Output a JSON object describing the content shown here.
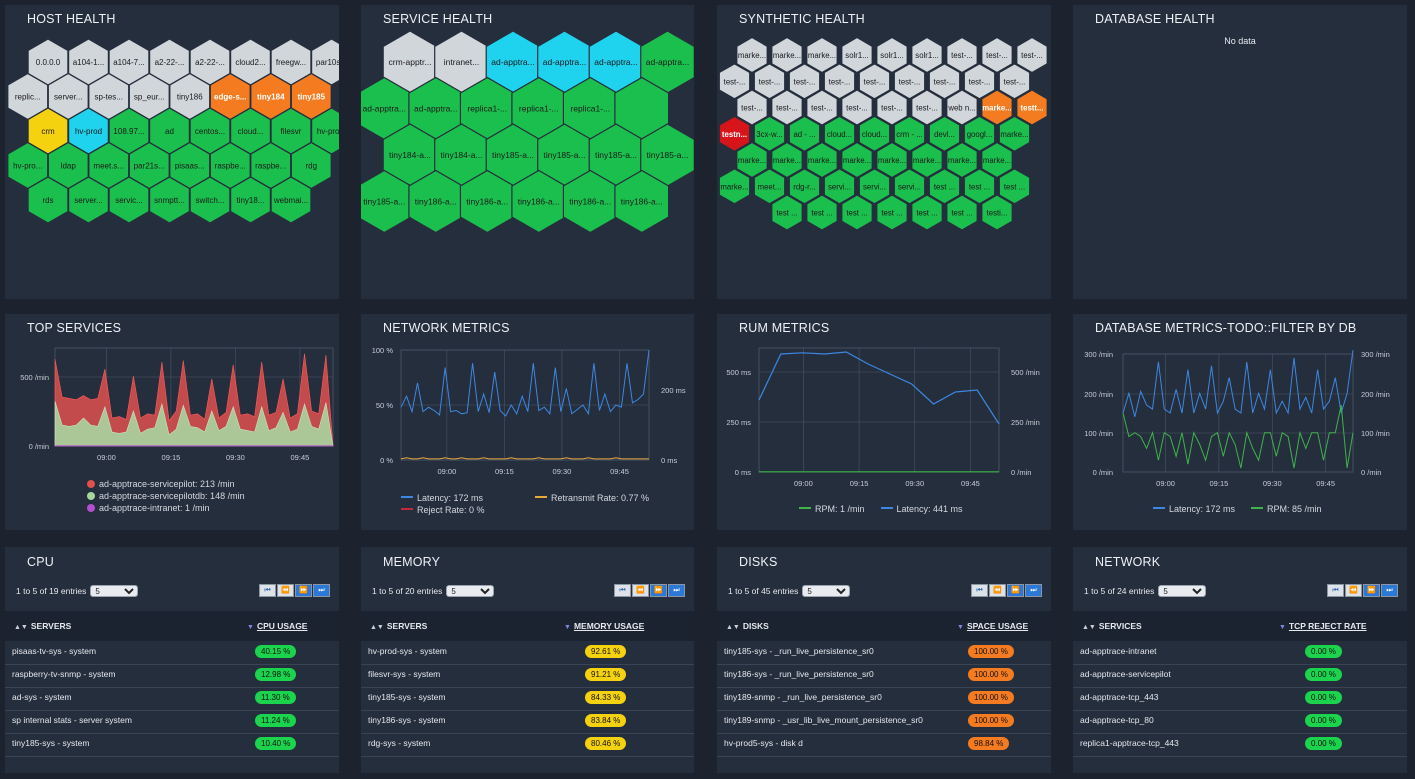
{
  "host_health": {
    "title": "HOST HEALTH",
    "rows": [
      [
        [
          "0.0.0.0",
          "#d1d6db"
        ],
        [
          "a104-1...",
          "#d1d6db"
        ],
        [
          "a104-7...",
          "#d1d6db"
        ],
        [
          "a2-22-...",
          "#d1d6db"
        ],
        [
          "a2-22-...",
          "#d1d6db"
        ],
        [
          "cloud2...",
          "#d1d6db"
        ],
        [
          "freegw...",
          "#d1d6db"
        ],
        [
          "par10s...",
          "#d1d6db"
        ]
      ],
      [
        [
          "replic...",
          "#d1d6db"
        ],
        [
          "server...",
          "#d1d6db"
        ],
        [
          "sp-tes...",
          "#d1d6db"
        ],
        [
          "sp_eur...",
          "#d1d6db"
        ],
        [
          "tiny186",
          "#d1d6db"
        ],
        [
          "edge-s...",
          "#f47b20"
        ],
        [
          "tiny184",
          "#f47b20"
        ],
        [
          "tiny185",
          "#f47b20"
        ]
      ],
      [
        [
          "crm",
          "#f5d20f"
        ],
        [
          "hv-prod",
          "#1fd3ef"
        ],
        [
          "108.97...",
          "#1bbf4d"
        ],
        [
          "ad",
          "#1bbf4d"
        ],
        [
          "centos...",
          "#1bbf4d"
        ],
        [
          "cloud...",
          "#1bbf4d"
        ],
        [
          "filesvr",
          "#1bbf4d"
        ],
        [
          "hv-pro...",
          "#1bbf4d"
        ]
      ],
      [
        [
          "hv-pro...",
          "#1bbf4d"
        ],
        [
          "ldap",
          "#1bbf4d"
        ],
        [
          "meet.s...",
          "#1bbf4d"
        ],
        [
          "par21s...",
          "#1bbf4d"
        ],
        [
          "pisaas...",
          "#1bbf4d"
        ],
        [
          "raspbe...",
          "#1bbf4d"
        ],
        [
          "raspbe...",
          "#1bbf4d"
        ],
        [
          "rdg",
          "#1bbf4d"
        ]
      ],
      [
        [
          "rds",
          "#1bbf4d"
        ],
        [
          "server...",
          "#1bbf4d"
        ],
        [
          "servic...",
          "#1bbf4d"
        ],
        [
          "snmptt...",
          "#1bbf4d"
        ],
        [
          "switch...",
          "#1bbf4d"
        ],
        [
          "tiny18...",
          "#1bbf4d"
        ],
        [
          "webmai...",
          "#1bbf4d"
        ]
      ]
    ]
  },
  "service_health": {
    "title": "SERVICE HEALTH",
    "rows": [
      [
        [
          "crm-apptr...",
          "#d1d6db"
        ],
        [
          "intranet...",
          "#d1d6db"
        ],
        [
          "ad-apptra...",
          "#1fd3ef"
        ],
        [
          "ad-apptra...",
          "#1fd3ef"
        ],
        [
          "ad-apptra...",
          "#1fd3ef"
        ],
        [
          "ad-apptra...",
          "#1bbf4d"
        ]
      ],
      [
        [
          "ad-apptra...",
          "#1bbf4d"
        ],
        [
          "ad-apptra...",
          "#1bbf4d"
        ],
        [
          "replica1-...",
          "#1bbf4d"
        ],
        [
          "replica1-...",
          "#1bbf4d"
        ],
        [
          "replica1-...",
          "#1bbf4d"
        ],
        [
          "",
          "#1bbf4d"
        ]
      ],
      [
        [
          "tiny184-a...",
          "#1bbf4d"
        ],
        [
          "tiny184-a...",
          "#1bbf4d"
        ],
        [
          "tiny185-a...",
          "#1bbf4d"
        ],
        [
          "tiny185-a...",
          "#1bbf4d"
        ],
        [
          "tiny185-a...",
          "#1bbf4d"
        ],
        [
          "tiny185-a...",
          "#1bbf4d"
        ]
      ],
      [
        [
          "tiny185-a...",
          "#1bbf4d"
        ],
        [
          "tiny186-a...",
          "#1bbf4d"
        ],
        [
          "tiny186-a...",
          "#1bbf4d"
        ],
        [
          "tiny186-a...",
          "#1bbf4d"
        ],
        [
          "tiny186-a...",
          "#1bbf4d"
        ],
        [
          "tiny186-a...",
          "#1bbf4d"
        ]
      ]
    ]
  },
  "synthetic_health": {
    "title": "SYNTHETIC HEALTH",
    "rows": [
      [
        [
          "marke...",
          "#d1d6db"
        ],
        [
          "marke...",
          "#d1d6db"
        ],
        [
          "marke...",
          "#d1d6db"
        ],
        [
          "solr1...",
          "#d1d6db"
        ],
        [
          "solr1...",
          "#d1d6db"
        ],
        [
          "solr1...",
          "#d1d6db"
        ],
        [
          "test-...",
          "#d1d6db"
        ],
        [
          "test-...",
          "#d1d6db"
        ],
        [
          "test-...",
          "#d1d6db"
        ]
      ],
      [
        [
          "test-...",
          "#d1d6db"
        ],
        [
          "test-...",
          "#d1d6db"
        ],
        [
          "test-...",
          "#d1d6db"
        ],
        [
          "test-...",
          "#d1d6db"
        ],
        [
          "test-...",
          "#d1d6db"
        ],
        [
          "test-...",
          "#d1d6db"
        ],
        [
          "test-...",
          "#d1d6db"
        ],
        [
          "test-...",
          "#d1d6db"
        ],
        [
          "test-...",
          "#d1d6db"
        ]
      ],
      [
        [
          "test-...",
          "#d1d6db"
        ],
        [
          "test-...",
          "#d1d6db"
        ],
        [
          "test-...",
          "#d1d6db"
        ],
        [
          "test-...",
          "#d1d6db"
        ],
        [
          "test-...",
          "#d1d6db"
        ],
        [
          "test-...",
          "#d1d6db"
        ],
        [
          "web n...",
          "#d1d6db"
        ],
        [
          "marke...",
          "#f47b20"
        ],
        [
          "testt...",
          "#f47b20"
        ]
      ],
      [
        [
          "testn...",
          "#d7141a"
        ],
        [
          "3cx-w...",
          "#1bbf4d"
        ],
        [
          "ad - ...",
          "#1bbf4d"
        ],
        [
          "cloud...",
          "#1bbf4d"
        ],
        [
          "cloud...",
          "#1bbf4d"
        ],
        [
          "crm - ...",
          "#1bbf4d"
        ],
        [
          "devl...",
          "#1bbf4d"
        ],
        [
          "googl...",
          "#1bbf4d"
        ],
        [
          "marke...",
          "#1bbf4d"
        ]
      ],
      [
        [
          "marke...",
          "#1bbf4d"
        ],
        [
          "marke...",
          "#1bbf4d"
        ],
        [
          "marke...",
          "#1bbf4d"
        ],
        [
          "marke...",
          "#1bbf4d"
        ],
        [
          "marke...",
          "#1bbf4d"
        ],
        [
          "marke...",
          "#1bbf4d"
        ],
        [
          "marke...",
          "#1bbf4d"
        ],
        [
          "marke...",
          "#1bbf4d"
        ]
      ],
      [
        [
          "marke...",
          "#1bbf4d"
        ],
        [
          "meet...",
          "#1bbf4d"
        ],
        [
          "rdg-r...",
          "#1bbf4d"
        ],
        [
          "servi...",
          "#1bbf4d"
        ],
        [
          "servi...",
          "#1bbf4d"
        ],
        [
          "servi...",
          "#1bbf4d"
        ],
        [
          "test ...",
          "#1bbf4d"
        ],
        [
          "test ...",
          "#1bbf4d"
        ],
        [
          "test ...",
          "#1bbf4d"
        ]
      ],
      [
        [
          "test ...",
          "#1bbf4d"
        ],
        [
          "test ...",
          "#1bbf4d"
        ],
        [
          "test ...",
          "#1bbf4d"
        ],
        [
          "test ...",
          "#1bbf4d"
        ],
        [
          "test ...",
          "#1bbf4d"
        ],
        [
          "test ...",
          "#1bbf4d"
        ],
        [
          "testi...",
          "#1bbf4d"
        ]
      ]
    ]
  },
  "database_health": {
    "title": "DATABASE HEALTH",
    "empty_text": "No data"
  },
  "chart_data": [
    {
      "type": "area",
      "title": "TOP SERVICES",
      "y_ticks": [
        "500 /min",
        "0 /min"
      ],
      "x_ticks": [
        "09:00",
        "09:15",
        "09:30",
        "09:45"
      ],
      "ylim": [
        0,
        700
      ],
      "series": [
        {
          "name": "ad-apptrace-servicepilot: 213 /min",
          "color": "#e0504f",
          "values": [
            620,
            350,
            340,
            330,
            360,
            330,
            340,
            550,
            200,
            210,
            190,
            500,
            200,
            230,
            220,
            600,
            180,
            250,
            610,
            220,
            230,
            190,
            480,
            200,
            240,
            580,
            220,
            230,
            210,
            600,
            220,
            240,
            480,
            200,
            230,
            660,
            250,
            230,
            650,
            0
          ]
        },
        {
          "name": "ad-apptrace-servicepilotdb: 148 /min",
          "color": "#a8d5a0",
          "values": [
            320,
            150,
            140,
            150,
            200,
            150,
            140,
            280,
            100,
            90,
            100,
            250,
            90,
            120,
            130,
            300,
            80,
            120,
            290,
            140,
            130,
            100,
            250,
            110,
            140,
            280,
            120,
            110,
            100,
            280,
            110,
            130,
            240,
            100,
            120,
            300,
            140,
            120,
            310,
            0
          ]
        },
        {
          "name": "ad-apptrace-intranet: 1 /min",
          "color": "#b44fd0",
          "values": [
            1,
            1,
            1,
            1,
            1,
            1,
            1,
            1,
            1,
            1,
            1,
            1,
            1,
            1,
            1,
            1,
            1,
            1,
            1,
            1,
            1,
            1,
            1,
            1,
            1,
            1,
            1,
            1,
            1,
            1,
            1,
            1,
            1,
            1,
            1,
            1,
            1,
            1,
            1,
            1
          ]
        }
      ]
    },
    {
      "type": "line",
      "title": "NETWORK METRICS",
      "y_ticks_left": [
        "100 %",
        "50 %",
        "0 %"
      ],
      "y_ticks_right": [
        "200 ms",
        "0 ms"
      ],
      "x_ticks": [
        "09:00",
        "09:15",
        "09:30",
        "09:45"
      ],
      "series": [
        {
          "name": "Latency: 172 ms",
          "color": "#3d87e0",
          "values": [
            48,
            58,
            44,
            70,
            44,
            48,
            45,
            41,
            84,
            44,
            45,
            42,
            43,
            88,
            44,
            60,
            43,
            80,
            45,
            40,
            50,
            42,
            58,
            44,
            88,
            45,
            48,
            42,
            84,
            44,
            65,
            42,
            46,
            50,
            42,
            88,
            45,
            60,
            44,
            50,
            48,
            88,
            52,
            55,
            60,
            100
          ]
        },
        {
          "name": "Retransmit Rate: 0.77 %",
          "color": "#e8a83a",
          "values": [
            1,
            2,
            1,
            1,
            2,
            1,
            1,
            1,
            2,
            1,
            1,
            2,
            1,
            1,
            1,
            2,
            1,
            1,
            1,
            1,
            2,
            1,
            1,
            1,
            1,
            2,
            1,
            1,
            1,
            1,
            2,
            1,
            1,
            1,
            2,
            1,
            1,
            1,
            1,
            2,
            1,
            1,
            1,
            1,
            1,
            1
          ]
        },
        {
          "name": "Reject Rate: 0 %",
          "color": "#c4263c",
          "values": []
        }
      ]
    },
    {
      "type": "line",
      "title": "RUM METRICS",
      "y_ticks_left": [
        "500 ms",
        "250 ms",
        "0 ms"
      ],
      "y_ticks_right": [
        "500 /min",
        "250 /min",
        "0 /min"
      ],
      "x_ticks": [
        "09:00",
        "09:15",
        "09:30",
        "09:45"
      ],
      "series": [
        {
          "name": "RPM: 1 /min",
          "color": "#3fb34a",
          "values": [
            1,
            1,
            1,
            1,
            1,
            1,
            1,
            1,
            1,
            1
          ]
        },
        {
          "name": "Latency: 441 ms",
          "color": "#3d87e0",
          "values": [
            360,
            590,
            596,
            590,
            600,
            540,
            490,
            440,
            340,
            400,
            410,
            240
          ]
        }
      ]
    },
    {
      "type": "line",
      "title": "DATABASE METRICS-TODO::FILTER BY DB",
      "y_ticks_left": [
        "300 /min",
        "200 /min",
        "100 /min",
        "0 /min"
      ],
      "y_ticks_right": [
        "300 /min",
        "200 /min",
        "100 /min",
        "0 /min"
      ],
      "x_ticks": [
        "09:00",
        "09:15",
        "09:30",
        "09:45"
      ],
      "series": [
        {
          "name": "Latency: 172 ms",
          "color": "#3d87e0",
          "values": [
            150,
            200,
            140,
            205,
            170,
            160,
            280,
            160,
            150,
            210,
            150,
            260,
            150,
            200,
            160,
            270,
            150,
            180,
            240,
            160,
            150,
            280,
            150,
            200,
            160,
            260,
            150,
            180,
            150,
            290,
            160,
            190,
            150,
            260,
            160,
            180,
            240,
            150,
            200,
            310
          ]
        },
        {
          "name": "RPM: 85 /min",
          "color": "#3fb34a",
          "values": [
            150,
            90,
            100,
            90,
            60,
            100,
            30,
            100,
            90,
            40,
            100,
            20,
            100,
            70,
            30,
            90,
            100,
            40,
            100,
            70,
            10,
            100,
            60,
            30,
            100,
            100,
            40,
            100,
            90,
            10,
            100,
            60,
            100,
            100,
            30,
            100,
            100,
            170,
            10,
            100
          ]
        }
      ]
    }
  ],
  "cpu": {
    "title": "CPU",
    "entries": "1 to 5 of 19 entries",
    "page_size": "5",
    "col1": "SERVERS",
    "col2": "CPU USAGE",
    "rows": [
      {
        "name": "pisaas-tv-sys - system",
        "value": "40.15 %",
        "color": "#1bd34c"
      },
      {
        "name": "raspberry-tv-snmp - system",
        "value": "12.98 %",
        "color": "#1bd34c"
      },
      {
        "name": "ad-sys - system",
        "value": "11.30 %",
        "color": "#1bd34c"
      },
      {
        "name": "sp internal stats - server system",
        "value": "11.24 %",
        "color": "#1bd34c"
      },
      {
        "name": "tiny185-sys - system",
        "value": "10.40 %",
        "color": "#1bd34c"
      }
    ]
  },
  "memory": {
    "title": "MEMORY",
    "entries": "1 to 5 of 20 entries",
    "page_size": "5",
    "col1": "SERVERS",
    "col2": "MEMORY USAGE",
    "rows": [
      {
        "name": "hv-prod-sys - system",
        "value": "92.61 %",
        "color": "#f5d20f"
      },
      {
        "name": "filesvr-sys - system",
        "value": "91.21 %",
        "color": "#f5d20f"
      },
      {
        "name": "tiny185-sys - system",
        "value": "84.33 %",
        "color": "#f5d20f"
      },
      {
        "name": "tiny186-sys - system",
        "value": "83.84 %",
        "color": "#f5d20f"
      },
      {
        "name": "rdg-sys - system",
        "value": "80.46 %",
        "color": "#f5d20f"
      }
    ]
  },
  "disks": {
    "title": "DISKS",
    "entries": "1 to 5 of 45 entries",
    "page_size": "5",
    "col1": "DISKS",
    "col2": "SPACE USAGE",
    "rows": [
      {
        "name": "tiny185-sys - _run_live_persistence_sr0",
        "value": "100.00 %",
        "color": "#f47b20"
      },
      {
        "name": "tiny186-sys - _run_live_persistence_sr0",
        "value": "100.00 %",
        "color": "#f47b20"
      },
      {
        "name": "tiny189-snmp - _run_live_persistence_sr0",
        "value": "100.00 %",
        "color": "#f47b20"
      },
      {
        "name": "tiny189-snmp - _usr_lib_live_mount_persistence_sr0",
        "value": "100.00 %",
        "color": "#f47b20"
      },
      {
        "name": "hv-prod5-sys - disk d",
        "value": "98.84 %",
        "color": "#f47b20"
      }
    ]
  },
  "network": {
    "title": "NETWORK",
    "entries": "1 to 5 of 24 entries",
    "page_size": "5",
    "col1": "SERVICES",
    "col2": "TCP REJECT RATE",
    "rows": [
      {
        "name": "ad-apptrace-intranet",
        "value": "0.00 %",
        "color": "#1bd34c"
      },
      {
        "name": "ad-apptrace-servicepilot",
        "value": "0.00 %",
        "color": "#1bd34c"
      },
      {
        "name": "ad-apptrace-tcp_443",
        "value": "0.00 %",
        "color": "#1bd34c"
      },
      {
        "name": "ad-apptrace-tcp_80",
        "value": "0.00 %",
        "color": "#1bd34c"
      },
      {
        "name": "replica1-apptrace-tcp_443",
        "value": "0.00 %",
        "color": "#1bd34c"
      }
    ]
  }
}
